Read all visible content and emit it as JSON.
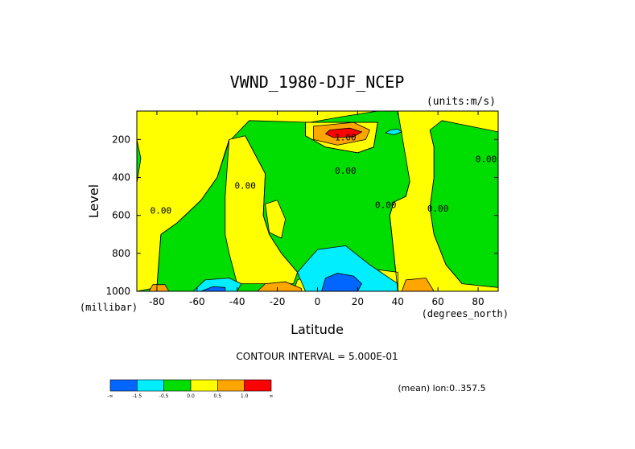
{
  "chart_data": {
    "type": "heatmap",
    "title": "VWND_1980-DJF_NCEP",
    "units_label": "(units:m/s)",
    "xlabel": "Latitude",
    "ylabel": "Level",
    "x_unit_label": "(degrees_north)",
    "y_unit_label": "(millibar)",
    "xlim": [
      -90,
      90
    ],
    "ylim": [
      1000,
      50
    ],
    "y_inverted": true,
    "x_ticks": [
      -80,
      -60,
      -40,
      -20,
      0,
      20,
      40,
      60,
      80
    ],
    "y_ticks": [
      200,
      400,
      600,
      800,
      1000
    ],
    "contour_interval_label": "CONTOUR INTERVAL = 5.000E-01",
    "mean_label": "(mean) lon:0..357.5",
    "colorbar": {
      "levels": [
        "-1.5",
        "-0.5",
        "0.0",
        "0.5",
        "1.0"
      ],
      "end_labels": [
        "-∞",
        "∞"
      ],
      "colors": [
        "#0066ff",
        "#00eeff",
        "#00dd00",
        "#ffff00",
        "#ffa500",
        "#ff0000"
      ]
    },
    "contour_labels": [
      {
        "text": "1.00",
        "x": 14,
        "y": 205
      },
      {
        "text": "0.00",
        "x": 14,
        "y": 380
      },
      {
        "text": "0.00",
        "x": -78,
        "y": 590
      },
      {
        "text": "0.00",
        "x": -36,
        "y": 460
      },
      {
        "text": "0.00",
        "x": 34,
        "y": 560
      },
      {
        "text": "0.00",
        "x": 60,
        "y": 580
      },
      {
        "text": "0.00",
        "x": 84,
        "y": 320
      }
    ],
    "regions": [
      {
        "fill": "#00dd00",
        "pts": [
          [
            -90,
            50
          ],
          [
            90,
            50
          ],
          [
            90,
            1000
          ],
          [
            -90,
            1000
          ]
        ]
      },
      {
        "fill": "#ffff00",
        "pts": [
          [
            -90,
            50
          ],
          [
            30,
            50
          ],
          [
            12,
            80
          ],
          [
            -4,
            110
          ],
          [
            -34,
            100
          ],
          [
            -44,
            210
          ],
          [
            -50,
            400
          ],
          [
            -58,
            520
          ],
          [
            -66,
            600
          ],
          [
            -70,
            640
          ],
          [
            -78,
            700
          ],
          [
            -80,
            980
          ],
          [
            -90,
            1000
          ],
          [
            -90,
            430
          ],
          [
            -88,
            300
          ],
          [
            -90,
            200
          ]
        ]
      },
      {
        "fill": "#ffff00",
        "pts": [
          [
            -44,
            200
          ],
          [
            -36,
            180
          ],
          [
            -26,
            380
          ],
          [
            -27,
            600
          ],
          [
            -24,
            700
          ],
          [
            -18,
            800
          ],
          [
            -10,
            900
          ],
          [
            -12,
            960
          ],
          [
            -40,
            960
          ],
          [
            -44,
            800
          ],
          [
            -46,
            700
          ],
          [
            -46,
            500
          ]
        ]
      },
      {
        "fill": "#ffff00",
        "pts": [
          [
            -26,
            540
          ],
          [
            -20,
            520
          ],
          [
            -16,
            620
          ],
          [
            -18,
            720
          ],
          [
            -24,
            690
          ]
        ]
      },
      {
        "fill": "#ffff00",
        "pts": [
          [
            -6,
            110
          ],
          [
            30,
            110
          ],
          [
            28,
            240
          ],
          [
            20,
            270
          ],
          [
            4,
            240
          ],
          [
            -6,
            180
          ]
        ]
      },
      {
        "fill": "#ffff00",
        "pts": [
          [
            40,
            50
          ],
          [
            90,
            50
          ],
          [
            90,
            160
          ],
          [
            62,
            100
          ],
          [
            56,
            150
          ],
          [
            58,
            240
          ],
          [
            58,
            400
          ],
          [
            56,
            560
          ],
          [
            58,
            700
          ],
          [
            64,
            860
          ],
          [
            72,
            960
          ],
          [
            90,
            980
          ],
          [
            90,
            1000
          ],
          [
            40,
            1000
          ],
          [
            38,
            800
          ],
          [
            36,
            600
          ],
          [
            38,
            530
          ],
          [
            44,
            500
          ],
          [
            46,
            420
          ]
        ]
      },
      {
        "fill": "#ffff00",
        "pts": [
          [
            -10,
            940
          ],
          [
            10,
            860
          ],
          [
            40,
            900
          ],
          [
            40,
            1000
          ],
          [
            -12,
            1000
          ]
        ]
      },
      {
        "fill": "#ffa500",
        "pts": [
          [
            -2,
            130
          ],
          [
            18,
            110
          ],
          [
            26,
            150
          ],
          [
            24,
            200
          ],
          [
            10,
            230
          ],
          [
            -2,
            200
          ]
        ]
      },
      {
        "fill": "#ff0000",
        "pts": [
          [
            6,
            150
          ],
          [
            16,
            140
          ],
          [
            22,
            160
          ],
          [
            18,
            185
          ],
          [
            8,
            190
          ],
          [
            4,
            170
          ]
        ]
      },
      {
        "fill": "#00eeff",
        "pts": [
          [
            -10,
            900
          ],
          [
            0,
            780
          ],
          [
            14,
            760
          ],
          [
            26,
            860
          ],
          [
            40,
            960
          ],
          [
            40,
            1000
          ],
          [
            -6,
            1000
          ]
        ]
      },
      {
        "fill": "#0066ff",
        "pts": [
          [
            2,
            1000
          ],
          [
            4,
            930
          ],
          [
            10,
            905
          ],
          [
            18,
            920
          ],
          [
            22,
            960
          ],
          [
            20,
            1000
          ]
        ]
      },
      {
        "fill": "#00eeff",
        "pts": [
          [
            -62,
            1000
          ],
          [
            -56,
            940
          ],
          [
            -44,
            930
          ],
          [
            -38,
            960
          ],
          [
            -40,
            1000
          ]
        ]
      },
      {
        "fill": "#0066ff",
        "pts": [
          [
            -58,
            1000
          ],
          [
            -52,
            975
          ],
          [
            -46,
            980
          ],
          [
            -46,
            1000
          ]
        ]
      },
      {
        "fill": "#ffa500",
        "pts": [
          [
            -30,
            1000
          ],
          [
            -26,
            960
          ],
          [
            -16,
            950
          ],
          [
            -8,
            985
          ],
          [
            -8,
            1000
          ]
        ]
      },
      {
        "fill": "#ffa500",
        "pts": [
          [
            -84,
            1000
          ],
          [
            -82,
            965
          ],
          [
            -76,
            965
          ],
          [
            -74,
            1000
          ]
        ]
      },
      {
        "fill": "#ffa500",
        "pts": [
          [
            42,
            1000
          ],
          [
            44,
            940
          ],
          [
            54,
            930
          ],
          [
            58,
            1000
          ]
        ]
      },
      {
        "fill": "#00eeff",
        "pts": [
          [
            36,
            150
          ],
          [
            40,
            145
          ],
          [
            42,
            160
          ],
          [
            38,
            175
          ],
          [
            34,
            165
          ]
        ]
      }
    ],
    "contour_lines": [
      [
        [
          -66,
          600
        ],
        [
          -70,
          640
        ],
        [
          -78,
          700
        ],
        [
          -80,
          980
        ]
      ],
      [
        [
          -44,
          200
        ],
        [
          -50,
          400
        ],
        [
          -58,
          520
        ],
        [
          -66,
          600
        ]
      ],
      [
        [
          -36,
          180
        ],
        [
          -26,
          380
        ],
        [
          -27,
          600
        ],
        [
          -24,
          700
        ],
        [
          -18,
          800
        ],
        [
          -10,
          900
        ]
      ],
      [
        [
          56,
          150
        ],
        [
          58,
          240
        ],
        [
          58,
          400
        ],
        [
          56,
          560
        ],
        [
          58,
          700
        ],
        [
          64,
          860
        ],
        [
          72,
          960
        ]
      ],
      [
        [
          46,
          420
        ],
        [
          44,
          500
        ],
        [
          38,
          530
        ],
        [
          36,
          600
        ],
        [
          38,
          800
        ],
        [
          40,
          1000
        ]
      ],
      [
        [
          -6,
          110
        ],
        [
          30,
          110
        ],
        [
          28,
          240
        ],
        [
          20,
          270
        ],
        [
          4,
          240
        ],
        [
          -6,
          180
        ],
        [
          -6,
          110
        ]
      ]
    ]
  }
}
